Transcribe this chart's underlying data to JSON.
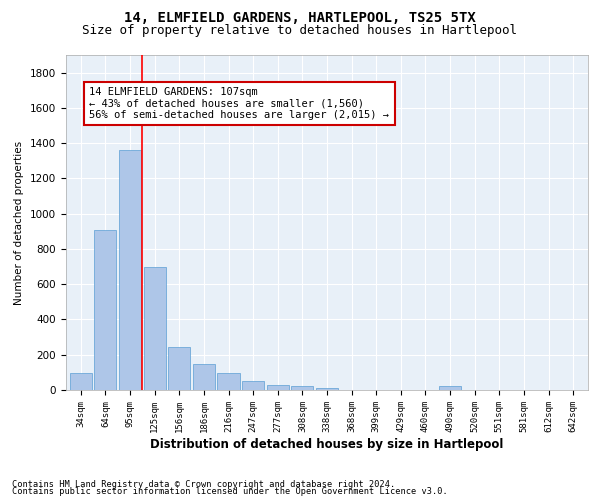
{
  "title": "14, ELMFIELD GARDENS, HARTLEPOOL, TS25 5TX",
  "subtitle": "Size of property relative to detached houses in Hartlepool",
  "xlabel": "Distribution of detached houses by size in Hartlepool",
  "ylabel": "Number of detached properties",
  "footnote1": "Contains HM Land Registry data © Crown copyright and database right 2024.",
  "footnote2": "Contains public sector information licensed under the Open Government Licence v3.0.",
  "bar_labels": [
    "34sqm",
    "64sqm",
    "95sqm",
    "125sqm",
    "156sqm",
    "186sqm",
    "216sqm",
    "247sqm",
    "277sqm",
    "308sqm",
    "338sqm",
    "368sqm",
    "399sqm",
    "429sqm",
    "460sqm",
    "490sqm",
    "520sqm",
    "551sqm",
    "581sqm",
    "612sqm",
    "642sqm"
  ],
  "bar_values": [
    95,
    910,
    1360,
    700,
    245,
    145,
    97,
    52,
    28,
    20,
    13,
    0,
    0,
    0,
    0,
    20,
    0,
    0,
    0,
    0,
    0
  ],
  "bar_color": "#aec6e8",
  "bar_edge_color": "#5a9fd4",
  "red_line_x": 2.5,
  "annotation_title": "14 ELMFIELD GARDENS: 107sqm",
  "annotation_line1": "← 43% of detached houses are smaller (1,560)",
  "annotation_line2": "56% of semi-detached houses are larger (2,015) →",
  "ylim": [
    0,
    1900
  ],
  "yticks": [
    0,
    200,
    400,
    600,
    800,
    1000,
    1200,
    1400,
    1600,
    1800
  ],
  "bg_color": "#e8f0f8",
  "grid_color": "#ffffff",
  "title_fontsize": 10,
  "subtitle_fontsize": 9,
  "annotation_box_color": "#ffffff",
  "annotation_box_edge": "#cc0000"
}
